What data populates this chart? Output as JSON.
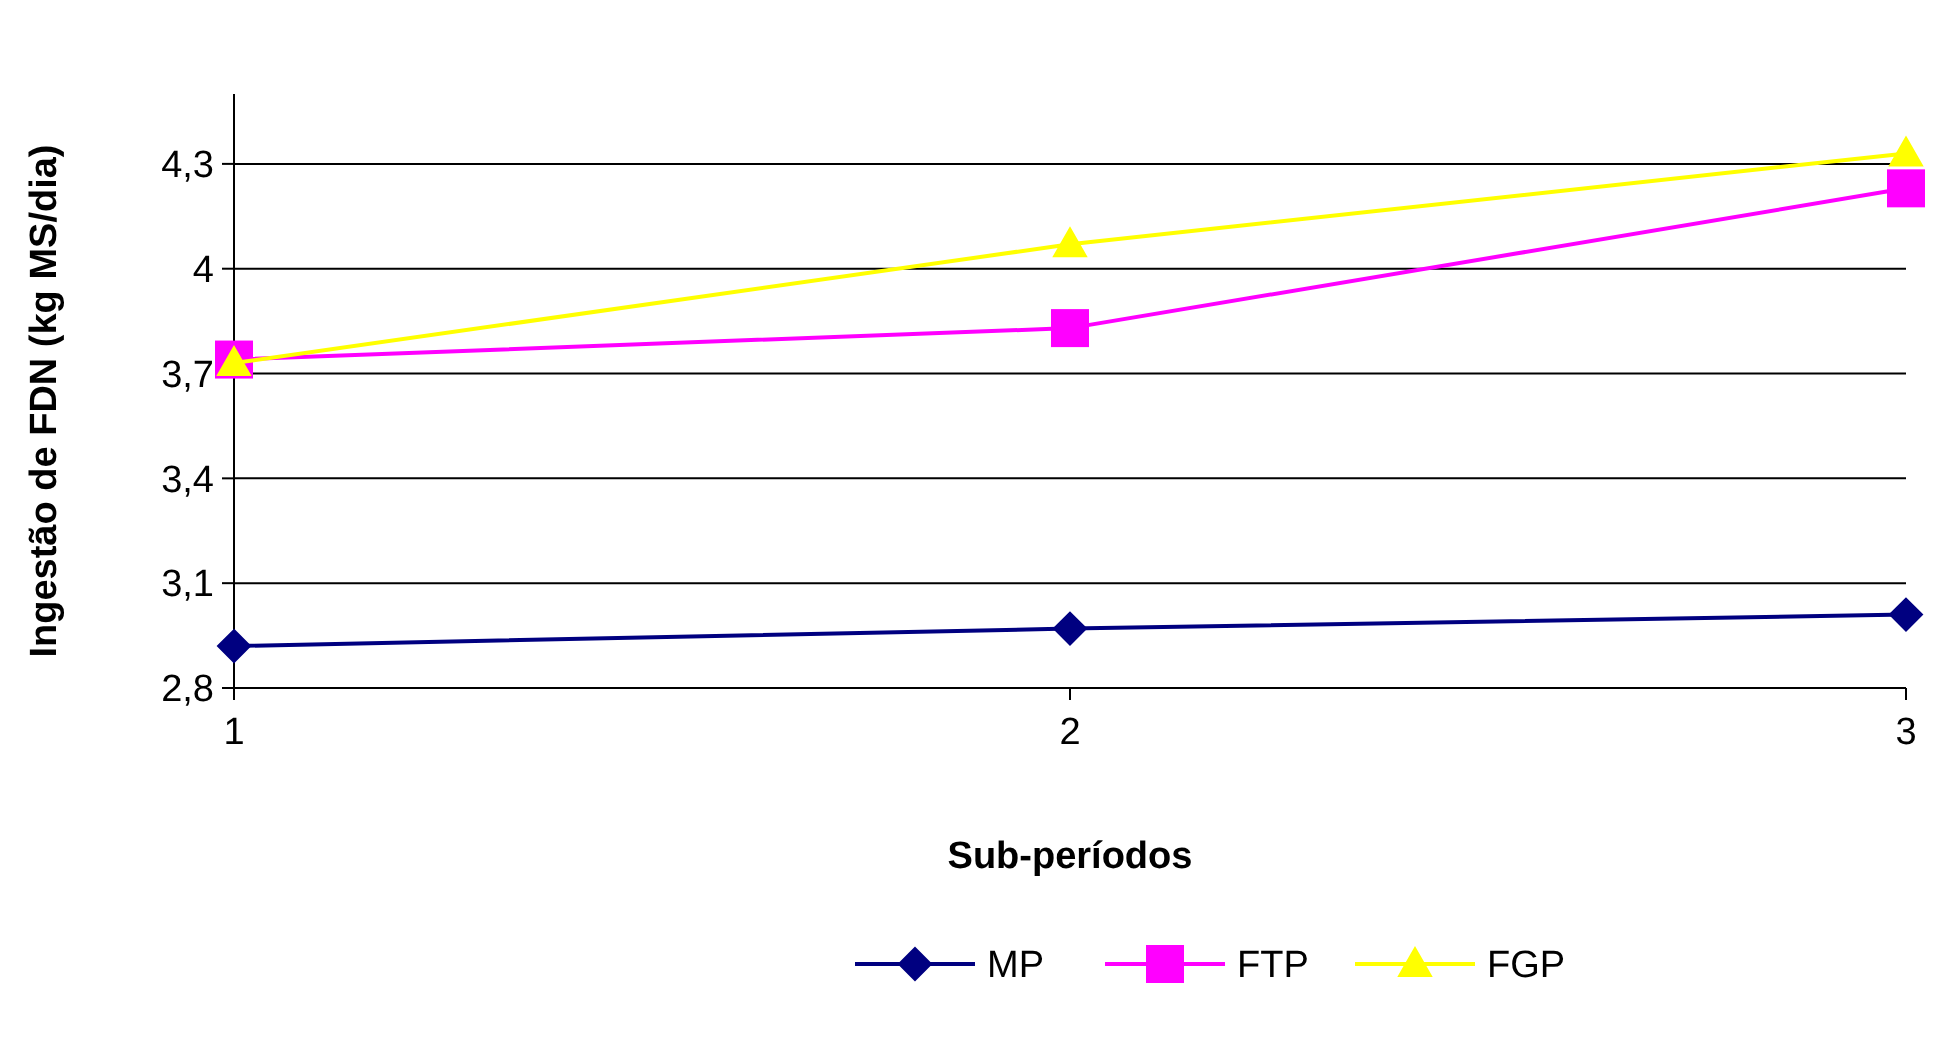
{
  "chart_data": {
    "type": "line",
    "xlabel": "Sub-períodos",
    "ylabel": "Ingestão de FDN (kg MS/dia)",
    "x": [
      1,
      2,
      3
    ],
    "xlim": [
      1,
      3
    ],
    "xticks": [
      1,
      2,
      3
    ],
    "ylim": [
      2.8,
      4.5
    ],
    "yticks": [
      {
        "value": 2.8,
        "label": "2,8"
      },
      {
        "value": 3.1,
        "label": "3,1"
      },
      {
        "value": 3.4,
        "label": "3,4"
      },
      {
        "value": 3.7,
        "label": "3,7"
      },
      {
        "value": 4,
        "label": "4"
      },
      {
        "value": 4.3,
        "label": "4,3"
      }
    ],
    "grid": "y",
    "legend": "bottom",
    "series": [
      {
        "name": "MP",
        "color": "#000080",
        "marker": "diamond",
        "values": [
          2.92,
          2.97,
          3.01
        ]
      },
      {
        "name": "FTP",
        "color": "#ff00ff",
        "marker": "square",
        "values": [
          3.74,
          3.83,
          4.23
        ]
      },
      {
        "name": "FGP",
        "color": "#ffff00",
        "marker": "triangle",
        "values": [
          3.73,
          4.07,
          4.33
        ]
      }
    ]
  }
}
